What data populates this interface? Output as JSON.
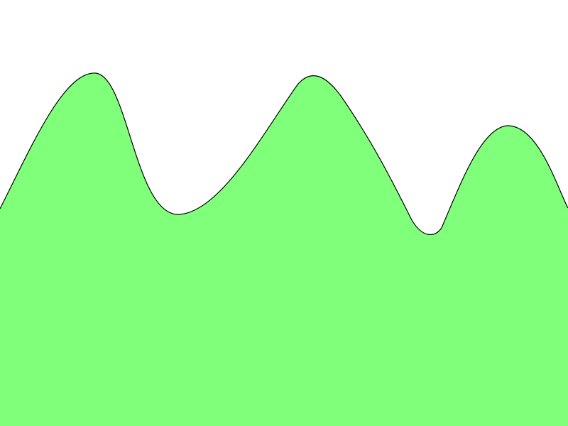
{
  "scene": {
    "background_color": "#ffffff",
    "fill_color": "#80ff7b",
    "outline_color": "#000000"
  }
}
